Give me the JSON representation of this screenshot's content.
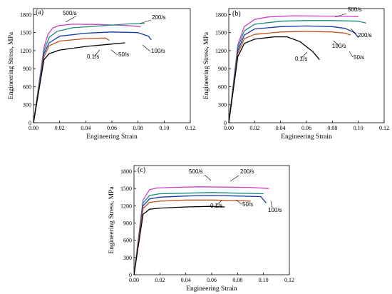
{
  "chart_data": [
    {
      "type": "line",
      "panel_label": "(a)",
      "xlabel": "Engineering Strain",
      "ylabel": "Engineering Stress, MPa",
      "xlim": [
        0,
        0.12
      ],
      "ylim": [
        0,
        1900
      ],
      "xticks": [
        "0.00",
        "0.02",
        "0.04",
        "0.06",
        "0.08",
        "0.10",
        "0.12"
      ],
      "yticks": [
        "0",
        "300",
        "600",
        "900",
        "1200",
        "1500",
        "1800"
      ],
      "series": [
        {
          "name": "500/s",
          "color": "#d040c8",
          "x": [
            0,
            0.008,
            0.011,
            0.015,
            0.02,
            0.03,
            0.05,
            0.07,
            0.082
          ],
          "y": [
            0,
            1250,
            1470,
            1580,
            1620,
            1640,
            1635,
            1620,
            1600
          ]
        },
        {
          "name": "200/s",
          "color": "#1a8c7a",
          "x": [
            0,
            0.008,
            0.012,
            0.018,
            0.03,
            0.05,
            0.07,
            0.085
          ],
          "y": [
            0,
            1200,
            1420,
            1520,
            1580,
            1610,
            1640,
            1655
          ]
        },
        {
          "name": "100/s",
          "color": "#1838a8",
          "x": [
            0,
            0.008,
            0.012,
            0.02,
            0.04,
            0.06,
            0.08,
            0.088,
            0.09
          ],
          "y": [
            0,
            1150,
            1330,
            1440,
            1490,
            1510,
            1500,
            1440,
            1380
          ]
        },
        {
          "name": "50/s",
          "color": "#c05020",
          "x": [
            0,
            0.008,
            0.012,
            0.02,
            0.04,
            0.055,
            0.058
          ],
          "y": [
            0,
            1100,
            1280,
            1360,
            1400,
            1410,
            1370
          ]
        },
        {
          "name": "0.1/s",
          "color": "#000000",
          "x": [
            0,
            0.008,
            0.012,
            0.02,
            0.04,
            0.06,
            0.07
          ],
          "y": [
            0,
            1050,
            1150,
            1210,
            1270,
            1310,
            1330
          ]
        }
      ]
    },
    {
      "type": "line",
      "panel_label": "(b)",
      "xlabel": "Engineering Strain",
      "ylabel": "Engineering Stress, MPa",
      "xlim": [
        0,
        0.12
      ],
      "ylim": [
        0,
        1900
      ],
      "xticks": [
        "0.00",
        "0.02",
        "0.04",
        "0.06",
        "0.08",
        "0.10",
        "0.12"
      ],
      "yticks": [
        "0",
        "300",
        "600",
        "900",
        "1200",
        "1500",
        "1800"
      ],
      "series": [
        {
          "name": "500/s",
          "color": "#d040c8",
          "x": [
            0,
            0.007,
            0.012,
            0.02,
            0.03,
            0.05,
            0.07,
            0.09,
            0.1
          ],
          "y": [
            0,
            1300,
            1600,
            1720,
            1760,
            1780,
            1775,
            1770,
            1765
          ]
        },
        {
          "name": "200/s",
          "color": "#1a8c7a",
          "x": [
            0,
            0.007,
            0.012,
            0.02,
            0.04,
            0.06,
            0.08,
            0.1,
            0.106
          ],
          "y": [
            0,
            1250,
            1530,
            1640,
            1690,
            1700,
            1700,
            1690,
            1660
          ]
        },
        {
          "name": "100/s",
          "color": "#1838a8",
          "x": [
            0,
            0.007,
            0.012,
            0.02,
            0.04,
            0.06,
            0.08,
            0.09,
            0.097,
            0.1
          ],
          "y": [
            0,
            1200,
            1460,
            1560,
            1600,
            1610,
            1600,
            1570,
            1500,
            1420
          ]
        },
        {
          "name": "50/s",
          "color": "#c05020",
          "x": [
            0,
            0.007,
            0.012,
            0.02,
            0.04,
            0.06,
            0.08,
            0.09,
            0.094
          ],
          "y": [
            0,
            1150,
            1400,
            1470,
            1510,
            1520,
            1510,
            1490,
            1460
          ]
        },
        {
          "name": "0.1/s",
          "color": "#000000",
          "x": [
            0,
            0.007,
            0.012,
            0.02,
            0.035,
            0.045,
            0.055,
            0.065,
            0.07
          ],
          "y": [
            0,
            1100,
            1320,
            1390,
            1430,
            1430,
            1350,
            1180,
            1050
          ]
        }
      ]
    },
    {
      "type": "line",
      "panel_label": "(c)",
      "xlabel": "Engineering Strain",
      "ylabel": "Engineering Stress, MPa",
      "xlim": [
        0,
        0.12
      ],
      "ylim": [
        0,
        1900
      ],
      "xticks": [
        "0.00",
        "0.02",
        "0.04",
        "0.06",
        "0.08",
        "0.10",
        "0.12"
      ],
      "yticks": [
        "0",
        "300",
        "600",
        "900",
        "1200",
        "1500",
        "1800"
      ],
      "series": [
        {
          "name": "500/s",
          "color": "#d040c8",
          "x": [
            0,
            0.007,
            0.012,
            0.018,
            0.03,
            0.05,
            0.07,
            0.09,
            0.104
          ],
          "y": [
            0,
            1300,
            1480,
            1510,
            1520,
            1530,
            1525,
            1520,
            1500
          ]
        },
        {
          "name": "200/s",
          "color": "#1a8c7a",
          "x": [
            0,
            0.007,
            0.012,
            0.02,
            0.04,
            0.06,
            0.08,
            0.1
          ],
          "y": [
            0,
            1250,
            1380,
            1410,
            1420,
            1430,
            1420,
            1410
          ]
        },
        {
          "name": "100/s",
          "color": "#1838a8",
          "x": [
            0,
            0.007,
            0.012,
            0.02,
            0.04,
            0.06,
            0.08,
            0.098,
            0.102
          ],
          "y": [
            0,
            1200,
            1320,
            1350,
            1370,
            1380,
            1370,
            1360,
            1250
          ]
        },
        {
          "name": "50/s",
          "color": "#c05020",
          "x": [
            0,
            0.007,
            0.012,
            0.02,
            0.04,
            0.06,
            0.08,
            0.09
          ],
          "y": [
            0,
            1150,
            1260,
            1280,
            1300,
            1300,
            1290,
            1280
          ]
        },
        {
          "name": "0.1/s",
          "color": "#000000",
          "x": [
            0,
            0.007,
            0.012,
            0.02,
            0.04,
            0.06,
            0.07
          ],
          "y": [
            0,
            1050,
            1140,
            1160,
            1180,
            1190,
            1180
          ]
        }
      ]
    }
  ]
}
